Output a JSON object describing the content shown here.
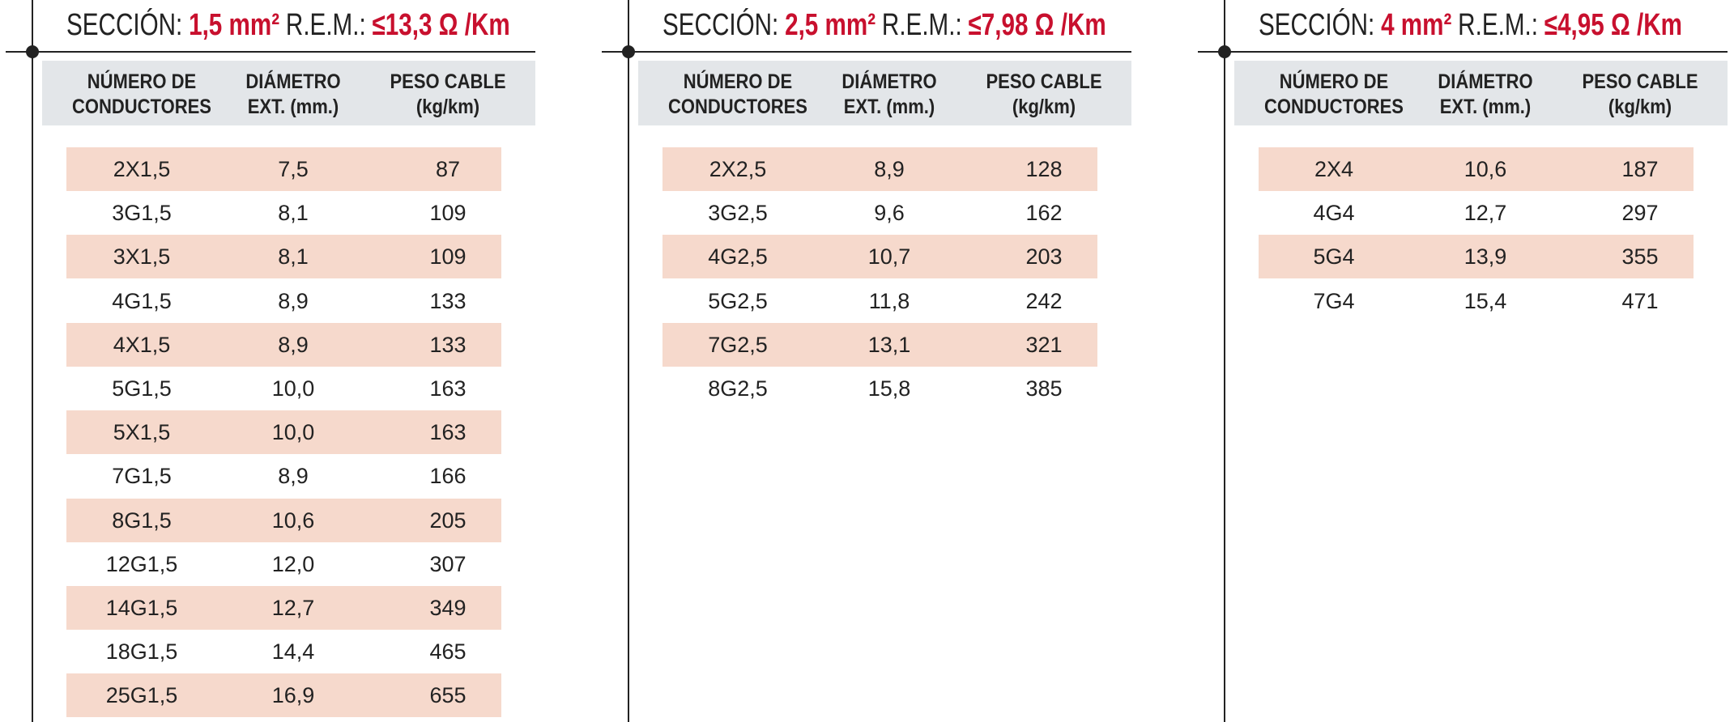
{
  "panels": [
    {
      "title": {
        "label": "SECCIÓN:",
        "section": "1,5 mm²",
        "rem_label": "R.E.M.:",
        "rem": "≤13,3 Ω /Km"
      },
      "headers": [
        "NÚMERO DE\nCONDUCTORES",
        "DIÁMETRO\nEXT. (mm.)",
        "PESO CABLE\n(kg/km)"
      ],
      "rows": [
        [
          "2X1,5",
          "7,5",
          "87"
        ],
        [
          "3G1,5",
          "8,1",
          "109"
        ],
        [
          "3X1,5",
          "8,1",
          "109"
        ],
        [
          "4G1,5",
          "8,9",
          "133"
        ],
        [
          "4X1,5",
          "8,9",
          "133"
        ],
        [
          "5G1,5",
          "10,0",
          "163"
        ],
        [
          "5X1,5",
          "10,0",
          "163"
        ],
        [
          "7G1,5",
          "8,9",
          "166"
        ],
        [
          "8G1,5",
          "10,6",
          "205"
        ],
        [
          "12G1,5",
          "12,0",
          "307"
        ],
        [
          "14G1,5",
          "12,7",
          "349"
        ],
        [
          "18G1,5",
          "14,4",
          "465"
        ],
        [
          "25G1,5",
          "16,9",
          "655"
        ]
      ]
    },
    {
      "title": {
        "label": "SECCIÓN:",
        "section": "2,5 mm²",
        "rem_label": "R.E.M.:",
        "rem": "≤7,98 Ω /Km"
      },
      "headers": [
        "NÚMERO DE\nCONDUCTORES",
        "DIÁMETRO\nEXT. (mm.)",
        "PESO CABLE\n(kg/km)"
      ],
      "rows": [
        [
          "2X2,5",
          "8,9",
          "128"
        ],
        [
          "3G2,5",
          "9,6",
          "162"
        ],
        [
          "4G2,5",
          "10,7",
          "203"
        ],
        [
          "5G2,5",
          "11,8",
          "242"
        ],
        [
          "7G2,5",
          "13,1",
          "321"
        ],
        [
          "8G2,5",
          "15,8",
          "385"
        ]
      ]
    },
    {
      "title": {
        "label": "SECCIÓN:",
        "section": "4 mm²",
        "rem_label": "R.E.M.:",
        "rem": "≤4,95 Ω /Km"
      },
      "headers": [
        "NÚMERO DE\nCONDUCTORES",
        "DIÁMETRO\nEXT. (mm.)",
        "PESO CABLE\n(kg/km)"
      ],
      "rows": [
        [
          "2X4",
          "10,6",
          "187"
        ],
        [
          "4G4",
          "12,7",
          "297"
        ],
        [
          "5G4",
          "13,9",
          "355"
        ],
        [
          "7G4",
          "15,4",
          "471"
        ]
      ]
    }
  ]
}
